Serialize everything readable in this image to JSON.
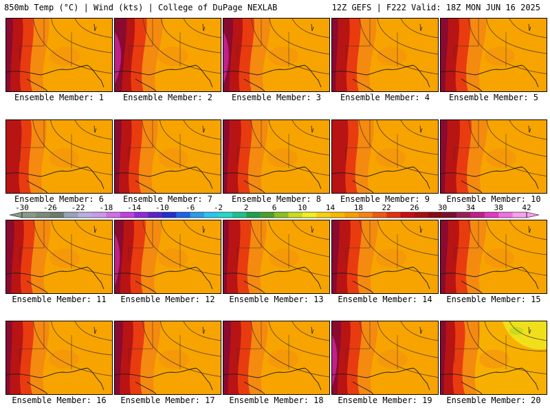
{
  "header": {
    "left_title": "850mb Temp (°C) | Wind (kts) | College of DuPage NEXLAB",
    "right_title": "12Z GEFS | F222 Valid: 18Z MON JUN 16 2025"
  },
  "legend": {
    "tick_labels": [
      "-30",
      "-26",
      "-22",
      "-18",
      "-14",
      "-10",
      "-6",
      "-2",
      "2",
      "6",
      "10",
      "14",
      "18",
      "22",
      "26",
      "30",
      "34",
      "38",
      "42"
    ],
    "colors": [
      "#8a9a87",
      "#7a8a79",
      "#6c7c6b",
      "#9aa2b8",
      "#b8b0e0",
      "#c89ae8",
      "#d06ee8",
      "#c040e0",
      "#8e2ad8",
      "#5a24c8",
      "#2030d0",
      "#1e64e6",
      "#2a9ce8",
      "#28c6f0",
      "#26d8c8",
      "#20c090",
      "#20a050",
      "#4aa028",
      "#8cc020",
      "#c8dc1c",
      "#f0f01c",
      "#f8d010",
      "#f8b800",
      "#f8a000",
      "#f48410",
      "#ee5a10",
      "#e03010",
      "#c81010",
      "#a81010",
      "#8a0a14",
      "#7a1030",
      "#9a1e58",
      "#c0208a",
      "#e03ac0",
      "#f070e0",
      "#f8a0f0"
    ]
  },
  "members": [
    {
      "label": "Ensemble Member: 1"
    },
    {
      "label": "Ensemble Member: 2"
    },
    {
      "label": "Ensemble Member: 3"
    },
    {
      "label": "Ensemble Member: 4"
    },
    {
      "label": "Ensemble Member: 5"
    },
    {
      "label": "Ensemble Member: 6"
    },
    {
      "label": "Ensemble Member: 7"
    },
    {
      "label": "Ensemble Member: 8"
    },
    {
      "label": "Ensemble Member: 9"
    },
    {
      "label": "Ensemble Member: 10"
    },
    {
      "label": "Ensemble Member: 11"
    },
    {
      "label": "Ensemble Member: 12"
    },
    {
      "label": "Ensemble Member: 13"
    },
    {
      "label": "Ensemble Member: 14"
    },
    {
      "label": "Ensemble Member: 15"
    },
    {
      "label": "Ensemble Member: 16"
    },
    {
      "label": "Ensemble Member: 17"
    },
    {
      "label": "Ensemble Member: 18"
    },
    {
      "label": "Ensemble Member: 19"
    },
    {
      "label": "Ensemble Member: 20"
    }
  ]
}
